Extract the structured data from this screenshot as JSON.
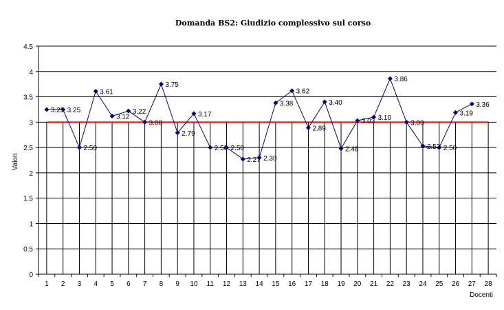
{
  "chart_data": {
    "type": "line",
    "title": "Domanda BS2: Giudizio complessivo sul corso",
    "xlabel": "Docenti",
    "ylabel": "Valori",
    "ylim": [
      0,
      4.5
    ],
    "yticks": [
      "0",
      "0.5",
      "1",
      "1.5",
      "2",
      "2.5",
      "3",
      "3.5",
      "4",
      "4.5"
    ],
    "categories": [
      "1",
      "2",
      "3",
      "4",
      "5",
      "6",
      "7",
      "8",
      "9",
      "10",
      "11",
      "12",
      "13",
      "14",
      "15",
      "16",
      "17",
      "18",
      "19",
      "20",
      "21",
      "22",
      "23",
      "24",
      "25",
      "26",
      "27",
      "28"
    ],
    "grid": true,
    "series": [
      {
        "color": "#000080",
        "marker": "diamond",
        "values": [
          3.25,
          3.25,
          2.5,
          3.61,
          3.12,
          3.22,
          3.0,
          3.75,
          2.79,
          3.17,
          2.5,
          2.5,
          2.27,
          2.3,
          3.38,
          3.62,
          2.89,
          3.4,
          2.48,
          3.03,
          3.1,
          3.86,
          3.0,
          2.53,
          2.5,
          3.19,
          3.36,
          null
        ],
        "labels": [
          "3.25",
          "3.25",
          "2.50",
          "3.61",
          "3.12",
          "3.22",
          "3.00",
          "3.75",
          "2.79",
          "3.17",
          "2.50",
          "2.50",
          "2.27",
          "2.30",
          "3.38",
          "3.62",
          "2.89",
          "3.40",
          "2.48",
          "3.03",
          "3.10",
          "3.86",
          "3.00",
          "2.53",
          "2.50",
          "3.19",
          "3.36",
          ""
        ]
      },
      {
        "color": "#ff0000",
        "value": 3,
        "drop_lines": true
      }
    ]
  }
}
